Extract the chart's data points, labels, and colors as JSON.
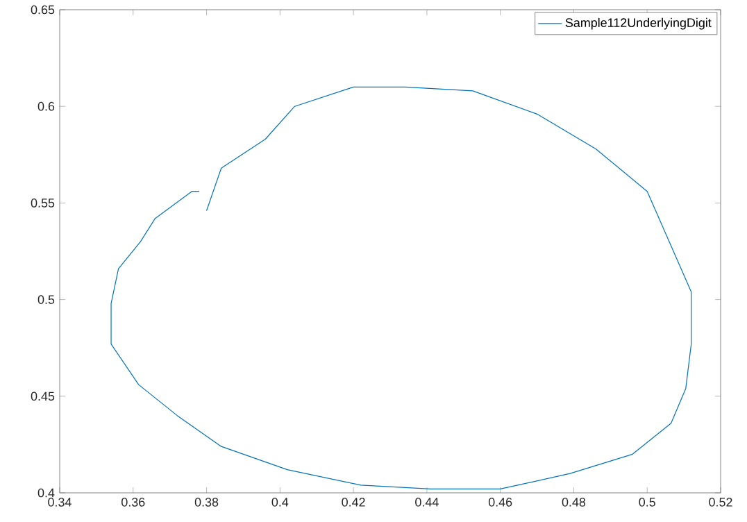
{
  "chart_data": {
    "type": "line",
    "legend": "top right",
    "xlim": [
      0.34,
      0.52
    ],
    "ylim": [
      0.4,
      0.65
    ],
    "xticks": [
      0.34,
      0.36,
      0.38,
      0.4,
      0.42,
      0.44,
      0.46,
      0.48,
      0.5,
      0.52
    ],
    "yticks": [
      0.4,
      0.45,
      0.5,
      0.55,
      0.6,
      0.65
    ],
    "series": [
      {
        "name": "Sample112UnderlyingDigit",
        "color": "#0072bd",
        "x": [
          0.38,
          0.384,
          0.396,
          0.404,
          0.42,
          0.434,
          0.4525,
          0.47,
          0.486,
          0.5,
          0.512,
          0.512,
          0.5105,
          0.5065,
          0.496,
          0.479,
          0.46,
          0.441,
          0.422,
          0.402,
          0.384,
          0.372,
          0.3615,
          0.354,
          0.354,
          0.356,
          0.362,
          0.366,
          0.376,
          0.378
        ],
        "values": [
          0.546,
          0.568,
          0.583,
          0.6,
          0.61,
          0.61,
          0.608,
          0.596,
          0.578,
          0.556,
          0.504,
          0.477,
          0.454,
          0.436,
          0.42,
          0.41,
          0.402,
          0.402,
          0.404,
          0.412,
          0.424,
          0.44,
          0.456,
          0.477,
          0.498,
          0.516,
          0.53,
          0.542,
          0.556,
          0.556
        ]
      }
    ]
  }
}
